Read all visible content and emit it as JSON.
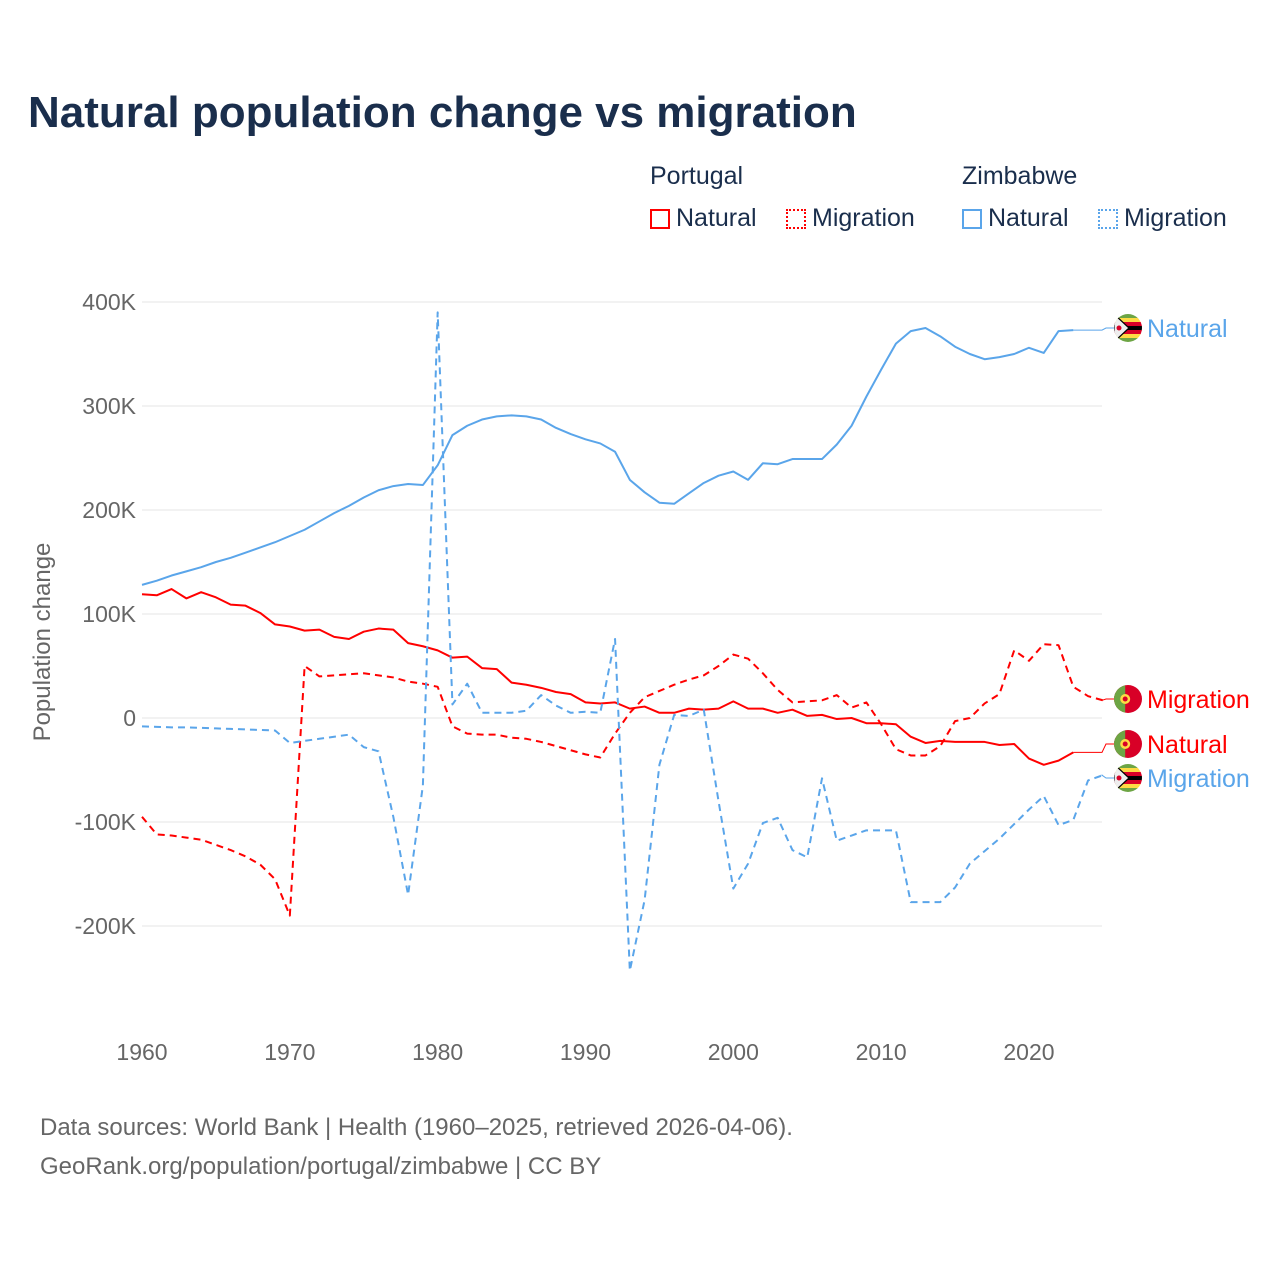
{
  "chart_data": {
    "type": "line",
    "title": "Natural population change vs migration",
    "xlabel": "",
    "ylabel": "Population change",
    "xlim": [
      1960,
      2025
    ],
    "ylim": [
      -250000,
      420000
    ],
    "x_ticks": [
      1960,
      1970,
      1980,
      1990,
      2000,
      2010,
      2020
    ],
    "x_tick_labels": [
      "1960",
      "1970",
      "1980",
      "1990",
      "2000",
      "2010",
      "2020"
    ],
    "y_ticks": [
      -200000,
      -100000,
      0,
      100000,
      200000,
      300000,
      400000
    ],
    "y_tick_labels": [
      "-200K",
      "-100K",
      "0",
      "100K",
      "200K",
      "300K",
      "400K"
    ],
    "grid": true,
    "legend_placement": "top-right",
    "legend": [
      {
        "country": "Portugal",
        "items": [
          "Natural",
          "Migration"
        ]
      },
      {
        "country": "Zimbabwe",
        "items": [
          "Natural",
          "Migration"
        ]
      }
    ],
    "series": [
      {
        "name": "Zimbabwe Natural",
        "country": "Zimbabwe",
        "kind": "Natural",
        "color": "#5aa5ea",
        "dash": false,
        "end_label": "Natural",
        "start_year": 1960,
        "values": [
          128000,
          132000,
          137000,
          141000,
          145000,
          150000,
          154000,
          159000,
          164000,
          169000,
          175000,
          181000,
          189000,
          197000,
          204000,
          212000,
          219000,
          223000,
          225000,
          224000,
          243000,
          272000,
          281000,
          287000,
          290000,
          291000,
          290000,
          287000,
          279000,
          273000,
          268000,
          264000,
          256000,
          229000,
          217000,
          207000,
          206000,
          216000,
          226000,
          233000,
          237000,
          229000,
          245000,
          244000,
          249000,
          249000,
          249000,
          263000,
          281000,
          309000,
          335000,
          360000,
          372000,
          375000,
          367000,
          357000,
          350000,
          345000,
          347000,
          350000,
          356000,
          351000,
          372000,
          373000
        ]
      },
      {
        "name": "Portugal Migration",
        "country": "Portugal",
        "kind": "Migration",
        "color": "#ff0000",
        "dash": true,
        "end_label": "Migration",
        "start_year": 1960,
        "values": [
          -95000,
          -112000,
          -113000,
          -115000,
          -117000,
          -122000,
          -127000,
          -133000,
          -141000,
          -155000,
          -190000,
          50000,
          40000,
          41000,
          42000,
          43000,
          41000,
          39000,
          35000,
          33000,
          30000,
          -8000,
          -15000,
          -16000,
          -16000,
          -19000,
          -20000,
          -23000,
          -27000,
          -31000,
          -35000,
          -38000,
          -15000,
          5000,
          20000,
          26000,
          32000,
          37000,
          41000,
          50000,
          61000,
          57000,
          43000,
          27000,
          15000,
          16000,
          17000,
          22000,
          10000,
          15000,
          -6000,
          -30000,
          -36000,
          -36000,
          -27000,
          -3000,
          0,
          14000,
          23000,
          65000,
          55000,
          71000,
          70000,
          30000,
          21000,
          17000
        ]
      },
      {
        "name": "Portugal Natural",
        "country": "Portugal",
        "kind": "Natural",
        "color": "#ff0000",
        "dash": false,
        "end_label": "Natural",
        "start_year": 1960,
        "values": [
          119000,
          118000,
          124000,
          115000,
          121000,
          116000,
          109000,
          108000,
          101000,
          90000,
          88000,
          84000,
          85000,
          78000,
          76000,
          83000,
          86000,
          85000,
          72000,
          69000,
          65000,
          58000,
          59000,
          48000,
          47000,
          34000,
          32000,
          29000,
          25000,
          23000,
          15000,
          14000,
          15000,
          9000,
          11000,
          5000,
          5000,
          9000,
          8000,
          9000,
          16000,
          9000,
          9000,
          5000,
          8000,
          2000,
          3000,
          -1000,
          0,
          -5000,
          -5000,
          -6000,
          -18000,
          -24000,
          -22000,
          -23000,
          -23000,
          -23000,
          -26000,
          -25000,
          -39000,
          -45000,
          -41000,
          -33000
        ]
      },
      {
        "name": "Zimbabwe Migration",
        "country": "Zimbabwe",
        "kind": "Migration",
        "color": "#5aa5ea",
        "dash": true,
        "end_label": "Migration",
        "start_year": 1960,
        "values": [
          -8000,
          -8500,
          -9000,
          -9000,
          -9500,
          -10000,
          -10500,
          -11000,
          -11500,
          -12000,
          -24000,
          -22000,
          -20000,
          -18000,
          -16000,
          -28000,
          -32000,
          -95000,
          -170000,
          -65000,
          390000,
          13000,
          33000,
          5000,
          5000,
          5000,
          7000,
          22000,
          12000,
          5000,
          6000,
          5000,
          76000,
          -243000,
          -175000,
          -45000,
          3000,
          2000,
          8000,
          -80000,
          -164000,
          -140000,
          -101000,
          -96000,
          -127000,
          -134000,
          -58000,
          -118000,
          -113000,
          -108000,
          -108000,
          -108000,
          -177000,
          -177000,
          -177000,
          -163000,
          -140000,
          -128000,
          -116000,
          -102000,
          -88000,
          -75000,
          -103000,
          -98000,
          -60000,
          -55000
        ]
      }
    ]
  },
  "footer": {
    "line1": "Data sources: World Bank | Health (1960–2025, retrieved 2026-04-06).",
    "line2": "GeoRank.org/population/portugal/zimbabwe | CC BY"
  }
}
